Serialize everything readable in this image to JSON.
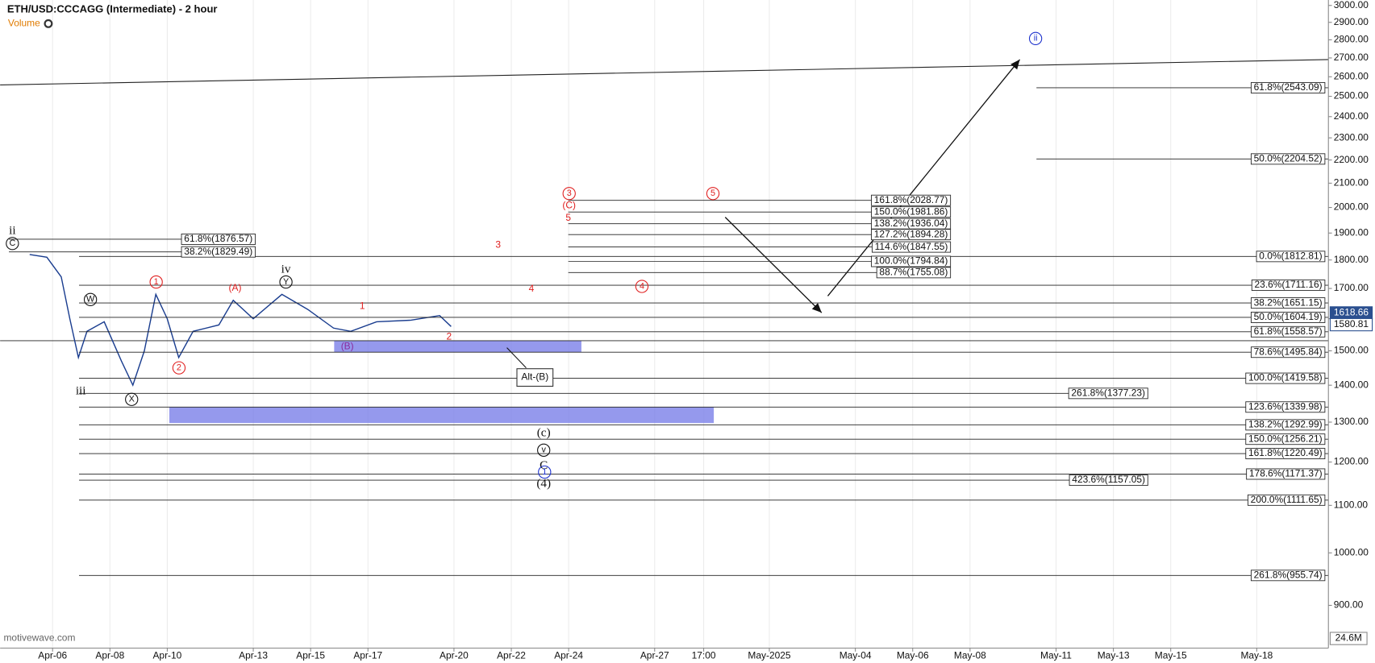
{
  "chart_data": {
    "type": "line",
    "title": "ETH/USD:CCCAGG (Intermediate) - 2 hour",
    "volume_label": "Volume",
    "watermark": "motivewave.com",
    "volume_scale_label": "24.6M",
    "log_scale": true,
    "color": "#1a3d8f",
    "x": [
      5.2,
      5.8,
      6.3,
      6.6,
      6.9,
      7.2,
      7.8,
      8.4,
      8.8,
      9.2,
      9.6,
      10.0,
      10.4,
      10.9,
      11.8,
      12.3,
      13.0,
      14.0,
      14.9,
      15.8,
      16.4,
      17.3,
      18.5,
      19.5,
      19.9
    ],
    "values": [
      1820,
      1810,
      1740,
      1600,
      1480,
      1560,
      1590,
      1470,
      1400,
      1500,
      1680,
      1600,
      1480,
      1560,
      1580,
      1660,
      1600,
      1680,
      1630,
      1570,
      1560,
      1590,
      1595,
      1610,
      1575
    ],
    "xlim": [
      4.17,
      50.5
    ],
    "xticks": [
      {
        "value": 6,
        "label": "Apr-06"
      },
      {
        "value": 8,
        "label": "Apr-08"
      },
      {
        "value": 10,
        "label": "Apr-10"
      },
      {
        "value": 13,
        "label": "Apr-13"
      },
      {
        "value": 15,
        "label": "Apr-15"
      },
      {
        "value": 17,
        "label": "Apr-17"
      },
      {
        "value": 20,
        "label": "Apr-20"
      },
      {
        "value": 22,
        "label": "Apr-22"
      },
      {
        "value": 24,
        "label": "Apr-24"
      },
      {
        "value": 27,
        "label": "Apr-27"
      },
      {
        "value": 28.71,
        "label": "17:00"
      },
      {
        "value": 31,
        "label": "May-2025"
      },
      {
        "value": 34,
        "label": "May-04"
      },
      {
        "value": 36,
        "label": "May-06"
      },
      {
        "value": 38,
        "label": "May-08"
      },
      {
        "value": 41,
        "label": "May-11"
      },
      {
        "value": 43,
        "label": "May-13"
      },
      {
        "value": 45,
        "label": "May-15"
      },
      {
        "value": 48,
        "label": "May-18"
      }
    ],
    "ylim": [
      826,
      3033
    ],
    "yticks": [
      {
        "value": 900,
        "label": "900.00"
      },
      {
        "value": 1000,
        "label": "1000.00"
      },
      {
        "value": 1100,
        "label": "1100.00"
      },
      {
        "value": 1200,
        "label": "1200.00"
      },
      {
        "value": 1300,
        "label": "1300.00"
      },
      {
        "value": 1400,
        "label": "1400.00"
      },
      {
        "value": 1500,
        "label": "1500.00"
      },
      {
        "value": 1600,
        "label": "1600.00"
      },
      {
        "value": 1700,
        "label": "1700.00"
      },
      {
        "value": 1800,
        "label": "1800.00"
      },
      {
        "value": 1900,
        "label": "1900.00"
      },
      {
        "value": 2000,
        "label": "2000.00"
      },
      {
        "value": 2100,
        "label": "2100.00"
      },
      {
        "value": 2200,
        "label": "2200.00"
      },
      {
        "value": 2300,
        "label": "2300.00"
      },
      {
        "value": 2400,
        "label": "2400.00"
      },
      {
        "value": 2500,
        "label": "2500.00"
      },
      {
        "value": 2600,
        "label": "2600.00"
      },
      {
        "value": 2700,
        "label": "2700.00"
      },
      {
        "value": 2800,
        "label": "2800.00"
      },
      {
        "value": 2900,
        "label": "2900.00"
      },
      {
        "value": 3000,
        "label": "3000.00"
      }
    ],
    "grid": true,
    "price_markers": [
      1618.66,
      1580.81
    ],
    "fib_groups": [
      {
        "levels": [
          {
            "value": 1812.81,
            "label": "0.0%(1812.81)"
          },
          {
            "value": 1711.16,
            "label": "23.6%(1711.16)"
          },
          {
            "value": 1651.15,
            "label": "38.2%(1651.15)"
          },
          {
            "value": 1604.19,
            "label": "50.0%(1604.19)"
          },
          {
            "value": 1558.57,
            "label": "61.8%(1558.57)"
          },
          {
            "value": 1495.84,
            "label": "78.6%(1495.84)"
          },
          {
            "value": 1419.58,
            "label": "100.0%(1419.58)"
          },
          {
            "value": 1339.98,
            "label": "123.6%(1339.98)"
          },
          {
            "value": 1292.99,
            "label": "138.2%(1292.99)"
          },
          {
            "value": 1256.21,
            "label": "150.0%(1256.21)"
          },
          {
            "value": 1220.49,
            "label": "161.8%(1220.49)"
          },
          {
            "value": 1171.37,
            "label": "178.6%(1171.37)"
          },
          {
            "value": 1111.65,
            "label": "200.0%(1111.65)"
          },
          {
            "value": 955.74,
            "label": "261.8%(955.74)"
          }
        ]
      },
      {
        "levels": [
          {
            "value": 2543.09,
            "label": "61.8%(2543.09)"
          },
          {
            "value": 2204.52,
            "label": "50.0%(2204.52)"
          }
        ]
      },
      {
        "levels": [
          {
            "value": 2028.77,
            "label": "161.8%(2028.77)"
          },
          {
            "value": 1981.86,
            "label": "150.0%(1981.86)"
          },
          {
            "value": 1936.04,
            "label": "138.2%(1936.04)"
          },
          {
            "value": 1894.28,
            "label": "127.2%(1894.28)"
          },
          {
            "value": 1847.55,
            "label": "114.6%(1847.55)"
          },
          {
            "value": 1794.84,
            "label": "100.0%(1794.84)"
          },
          {
            "value": 1755.08,
            "label": "88.7%(1755.08)"
          }
        ]
      },
      {
        "levels": [
          {
            "value": 1377.23,
            "label": "261.8%(1377.23)"
          },
          {
            "value": 1157.05,
            "label": "423.6%(1157.05)"
          }
        ]
      },
      {
        "levels": [
          {
            "value": 1876.57,
            "label": "61.8%(1876.57)"
          },
          {
            "value": 1829.49,
            "label": "38.2%(1829.49)"
          }
        ]
      }
    ],
    "annotations": [
      "ii",
      "C",
      "W",
      "iii",
      "X",
      "iv",
      "Y",
      "1",
      "2",
      "(A)",
      "(B)",
      "1",
      "2",
      "3",
      "4",
      "3",
      "(C)",
      "5",
      "5",
      "4",
      "Alt-(B)",
      "(c)",
      "v",
      "C",
      "1",
      "(4)",
      "ii"
    ]
  }
}
